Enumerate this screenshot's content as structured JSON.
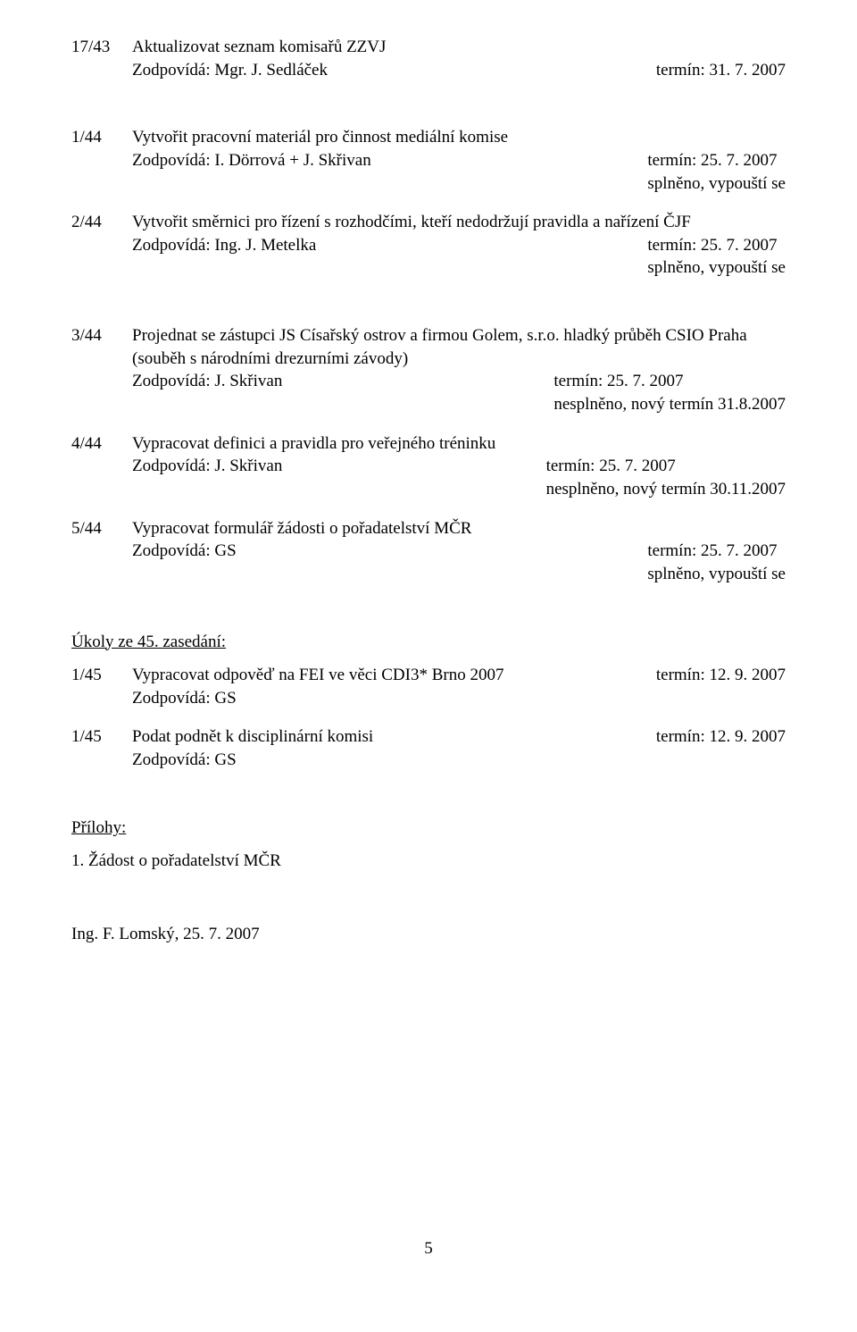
{
  "e1": {
    "num": "17/43",
    "title": "Aktualizovat seznam komisařů ZZVJ",
    "resp": "Zodpovídá: Mgr. J. Sedláček",
    "term": "termín: 31. 7. 2007"
  },
  "e2": {
    "num": "1/44",
    "title": "Vytvořit pracovní materiál pro činnost mediální komise",
    "resp": "Zodpovídá: I. Dörrová + J. Skřivan",
    "term": "termín: 25. 7. 2007",
    "note": "splněno, vypouští se"
  },
  "e3": {
    "num": "2/44",
    "title": "Vytvořit směrnici pro řízení s rozhodčími, kteří nedodržují pravidla a nařízení ČJF",
    "resp": "Zodpovídá: Ing. J. Metelka",
    "term": "termín: 25. 7. 2007",
    "note": "splněno, vypouští se"
  },
  "e4": {
    "num": "3/44",
    "title_l1": "Projednat se zástupci JS Císařský ostrov a firmou Golem, s.r.o. hladký průběh CSIO Praha",
    "title_l2": "(souběh s národními drezurními závody)",
    "resp": "Zodpovídá: J. Skřivan",
    "term": "termín: 25. 7. 2007",
    "note": "nesplněno, nový termín 31.8.2007"
  },
  "e5": {
    "num": "4/44",
    "title": "Vypracovat definici a pravidla pro veřejného tréninku",
    "resp": "Zodpovídá: J. Skřivan",
    "term": "termín: 25. 7. 2007",
    "note": "nesplněno, nový termín 30.11.2007"
  },
  "e6": {
    "num": "5/44",
    "title": "Vypracovat formulář žádosti o pořadatelství MČR",
    "resp": "Zodpovídá: GS",
    "term": "termín: 25. 7. 2007",
    "note": "splněno, vypouští se"
  },
  "sectionHeading": "Úkoly ze 45. zasedání:",
  "e7": {
    "num": "1/45",
    "title": "Vypracovat odpověď na FEI ve věci CDI3* Brno 2007",
    "term": "termín: 12. 9. 2007",
    "resp": "Zodpovídá: GS"
  },
  "e8": {
    "num": "1/45",
    "title": "Podat podnět k disciplinární komisi",
    "term": "termín: 12. 9. 2007",
    "resp": "Zodpovídá: GS"
  },
  "attachmentsHeading": "Přílohy:",
  "attachment1": "1.  Žádost o pořadatelství MČR",
  "signature": "Ing. F. Lomský, 25. 7. 2007",
  "pageNumber": "5"
}
